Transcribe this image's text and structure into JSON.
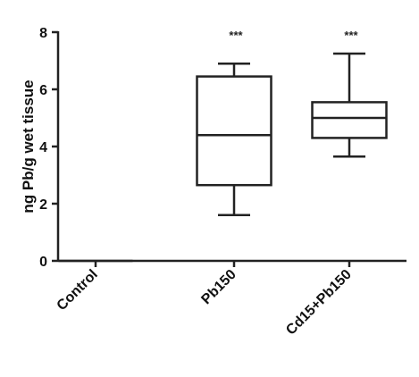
{
  "chart_data": {
    "type": "box",
    "title": "",
    "xlabel": "",
    "ylabel": "ng Pb/g wet tissue",
    "ylim": [
      0,
      8
    ],
    "yticks": [
      "0",
      "2",
      "4",
      "6",
      "8"
    ],
    "grid": false,
    "categories": [
      "Control",
      "Pb150",
      "Cd15+Pb150"
    ],
    "boxes": [
      {
        "category": "Control",
        "min": 0,
        "q1": 0,
        "median": 0,
        "q3": 0,
        "max": 0,
        "significance": ""
      },
      {
        "category": "Pb150",
        "min": 1.6,
        "q1": 2.65,
        "median": 4.4,
        "q3": 6.45,
        "max": 6.9,
        "significance": "***"
      },
      {
        "category": "Cd15+Pb150",
        "min": 3.65,
        "q1": 4.3,
        "median": 5.0,
        "q3": 5.55,
        "max": 7.25,
        "significance": "***"
      }
    ],
    "colors": {
      "stroke": "#222222",
      "background": "#ffffff"
    }
  }
}
